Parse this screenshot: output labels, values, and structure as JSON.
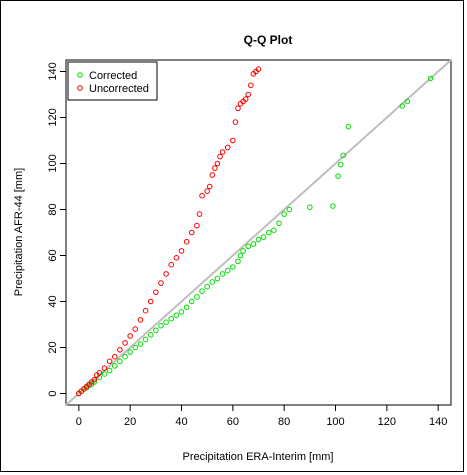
{
  "chart_data": {
    "type": "scatter",
    "title": "Q-Q Plot",
    "xlabel": "Precipitation ERA-Interim [mm]",
    "ylabel": "Precipitation AFR-44 [mm]",
    "xlim": [
      -5,
      145
    ],
    "ylim": [
      -5,
      145
    ],
    "xticks": [
      0,
      20,
      40,
      60,
      80,
      100,
      120,
      140
    ],
    "yticks": [
      0,
      20,
      40,
      60,
      80,
      100,
      120,
      140
    ],
    "legend_position": "top-left",
    "reference_line": {
      "type": "identity",
      "color": "#bebebe"
    },
    "series": [
      {
        "name": "Corrected",
        "color": "#00dd00",
        "marker": "open-circle",
        "x": [
          0,
          1,
          2,
          3,
          4,
          5,
          6,
          8,
          10,
          12,
          14,
          16,
          18,
          20,
          22,
          24,
          26,
          28,
          30,
          32,
          34,
          36,
          38,
          40,
          42,
          44,
          46,
          48,
          50,
          52,
          54,
          56,
          58,
          60,
          62,
          63,
          64,
          66,
          68,
          70,
          72,
          74,
          76,
          78,
          80,
          82,
          90,
          99,
          101,
          102,
          103,
          105,
          126,
          128,
          137
        ],
        "y": [
          0,
          1,
          2,
          2.5,
          3.5,
          4,
          5,
          7,
          8.5,
          10,
          12,
          14,
          16,
          18,
          20,
          21.5,
          23.5,
          25.5,
          27.5,
          29.5,
          31,
          32.5,
          34,
          35.5,
          37.5,
          40,
          42,
          44.5,
          46.5,
          48.5,
          50,
          52,
          53.5,
          55,
          57.5,
          60,
          62,
          64,
          65,
          67,
          68,
          70,
          71,
          74,
          78,
          80,
          81,
          81.5,
          94.5,
          99.5,
          103.5,
          116,
          125,
          127,
          137
        ]
      },
      {
        "name": "Uncorrected",
        "color": "#ff0000",
        "marker": "open-circle",
        "x": [
          0,
          1,
          2,
          3,
          4,
          5,
          6,
          7,
          8,
          10,
          12,
          14,
          16,
          18,
          20,
          22,
          24,
          26,
          28,
          30,
          32,
          34,
          36,
          38,
          40,
          42,
          44,
          46,
          47,
          48,
          50,
          51,
          52,
          53,
          54,
          55,
          56,
          58,
          60,
          61,
          62,
          63,
          64,
          65,
          66,
          67,
          68,
          69,
          70
        ],
        "y": [
          0,
          1,
          2,
          3,
          4,
          5,
          6,
          8,
          9,
          11,
          14,
          16,
          19,
          22,
          25,
          28,
          32,
          36,
          40,
          44,
          48,
          52,
          56,
          59,
          62,
          66,
          70,
          73,
          78,
          86,
          88,
          90,
          95,
          98,
          100,
          103,
          105,
          107,
          110,
          118,
          124,
          126,
          127,
          128,
          130,
          134,
          139,
          140,
          141
        ]
      }
    ]
  }
}
